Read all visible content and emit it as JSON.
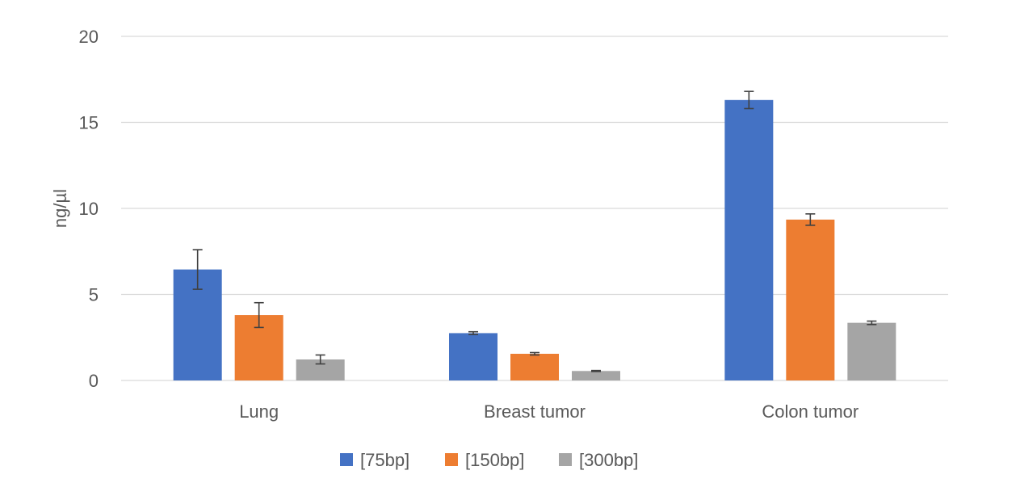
{
  "chart_data": {
    "type": "bar",
    "title": "",
    "xlabel": "",
    "ylabel": "ng/µl",
    "ylim": [
      0,
      20
    ],
    "yticks": [
      0,
      5,
      10,
      15,
      20
    ],
    "grid": true,
    "legend_position": "bottom",
    "categories": [
      "Lung",
      "Breast tumor",
      "Colon tumor"
    ],
    "series": [
      {
        "name": "[75bp]",
        "color": "#4472c4",
        "values": [
          6.45,
          2.75,
          16.3
        ],
        "errors": [
          1.15,
          0.08,
          0.5
        ]
      },
      {
        "name": "[150bp]",
        "color": "#ed7d31",
        "values": [
          3.8,
          1.55,
          9.35
        ],
        "errors": [
          0.72,
          0.07,
          0.33
        ]
      },
      {
        "name": "[300bp]",
        "color": "#a5a5a5",
        "values": [
          1.22,
          0.55,
          3.35
        ],
        "errors": [
          0.26,
          0.03,
          0.1
        ]
      }
    ]
  }
}
